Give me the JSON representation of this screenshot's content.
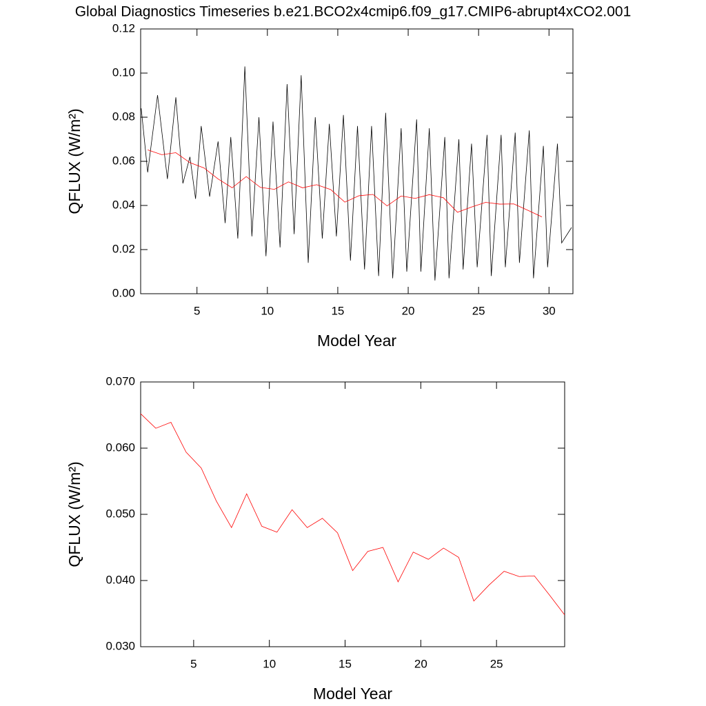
{
  "chart_data": [
    {
      "type": "line",
      "title": "Global Diagnostics Timeseries b.e21.BCO2x4cmip6.f09_g17.CMIP6-abrupt4xCO2.001",
      "xlabel": "Model Year",
      "ylabel": "QFLUX (W/m²)",
      "xlim": [
        1,
        31.7
      ],
      "xticks": [
        5,
        10,
        15,
        20,
        25,
        30
      ],
      "ylim": [
        0,
        0.12
      ],
      "yticks": [
        {
          "value": 0,
          "label": "0.00"
        },
        {
          "value": 0.02,
          "label": "0.02"
        },
        {
          "value": 0.04,
          "label": "0.04"
        },
        {
          "value": 0.06,
          "label": "0.06"
        },
        {
          "value": 0.08,
          "label": "0.08"
        },
        {
          "value": 0.1,
          "label": "0.10"
        },
        {
          "value": 0.12,
          "label": "0.12"
        }
      ],
      "series": [
        {
          "color": "#000000",
          "x": [
            1.04,
            1.5,
            2.2,
            2.9,
            3.5,
            4.0,
            4.5,
            4.9,
            5.3,
            5.9,
            6.5,
            7.0,
            7.4,
            7.9,
            8.4,
            8.9,
            9.4,
            9.9,
            10.4,
            10.9,
            11.4,
            11.9,
            12.4,
            12.9,
            13.4,
            13.9,
            14.4,
            14.9,
            15.4,
            15.9,
            16.4,
            16.9,
            17.4,
            17.9,
            18.4,
            18.9,
            19.5,
            19.9,
            20.6,
            20.9,
            21.5,
            21.9,
            22.6,
            22.9,
            23.6,
            23.9,
            24.5,
            24.9,
            25.6,
            25.9,
            26.6,
            26.9,
            27.6,
            27.9,
            28.6,
            28.9,
            29.6,
            29.9,
            30.6,
            30.9,
            31.6
          ],
          "values": [
            0.084,
            0.055,
            0.09,
            0.052,
            0.089,
            0.05,
            0.062,
            0.043,
            0.076,
            0.044,
            0.069,
            0.032,
            0.071,
            0.025,
            0.103,
            0.026,
            0.08,
            0.017,
            0.078,
            0.021,
            0.095,
            0.027,
            0.099,
            0.014,
            0.08,
            0.025,
            0.077,
            0.026,
            0.081,
            0.015,
            0.076,
            0.011,
            0.076,
            0.008,
            0.082,
            0.007,
            0.075,
            0.01,
            0.079,
            0.01,
            0.075,
            0.006,
            0.071,
            0.007,
            0.07,
            0.011,
            0.068,
            0.012,
            0.072,
            0.008,
            0.072,
            0.012,
            0.073,
            0.014,
            0.074,
            0.007,
            0.067,
            0.012,
            0.068,
            0.023,
            0.03
          ]
        },
        {
          "color": "#ff0000",
          "x": [
            1.5,
            2.5,
            3.5,
            4.5,
            5.5,
            6.5,
            7.5,
            8.5,
            9.5,
            10.5,
            11.5,
            12.5,
            13.5,
            14.5,
            15.5,
            16.5,
            17.5,
            18.5,
            19.5,
            20.5,
            21.5,
            22.5,
            23.5,
            24.5,
            25.5,
            26.5,
            27.5,
            28.5,
            29.5
          ],
          "values": [
            0.0652,
            0.063,
            0.0639,
            0.0594,
            0.057,
            0.052,
            0.048,
            0.0531,
            0.0482,
            0.0473,
            0.0507,
            0.048,
            0.0494,
            0.0472,
            0.0415,
            0.0444,
            0.045,
            0.0398,
            0.0443,
            0.0432,
            0.0449,
            0.0435,
            0.0369,
            0.0393,
            0.0414,
            0.0406,
            0.0407,
            0.0378,
            0.0348
          ]
        }
      ]
    },
    {
      "type": "line",
      "xlabel": "Model Year",
      "ylabel": "QFLUX (W/m²)",
      "xlim": [
        1.5,
        29.5
      ],
      "xticks": [
        5,
        10,
        15,
        20,
        25
      ],
      "ylim": [
        0.03,
        0.07
      ],
      "yticks": [
        {
          "value": 0.03,
          "label": "0.030"
        },
        {
          "value": 0.04,
          "label": "0.040"
        },
        {
          "value": 0.05,
          "label": "0.050"
        },
        {
          "value": 0.06,
          "label": "0.060"
        },
        {
          "value": 0.07,
          "label": "0.070"
        }
      ],
      "series": [
        {
          "color": "#ff0000",
          "x": [
            1.5,
            2.5,
            3.5,
            4.5,
            5.5,
            6.5,
            7.5,
            8.5,
            9.5,
            10.5,
            11.5,
            12.5,
            13.5,
            14.5,
            15.5,
            16.5,
            17.5,
            18.5,
            19.5,
            20.5,
            21.5,
            22.5,
            23.5,
            24.5,
            25.5,
            26.5,
            27.5,
            28.5,
            29.5
          ],
          "values": [
            0.0652,
            0.063,
            0.0639,
            0.0594,
            0.057,
            0.052,
            0.048,
            0.0531,
            0.0482,
            0.0473,
            0.0507,
            0.048,
            0.0494,
            0.0472,
            0.0415,
            0.0444,
            0.045,
            0.0398,
            0.0443,
            0.0432,
            0.0449,
            0.0435,
            0.0369,
            0.0393,
            0.0414,
            0.0406,
            0.0407,
            0.0378,
            0.0348
          ]
        }
      ]
    }
  ]
}
